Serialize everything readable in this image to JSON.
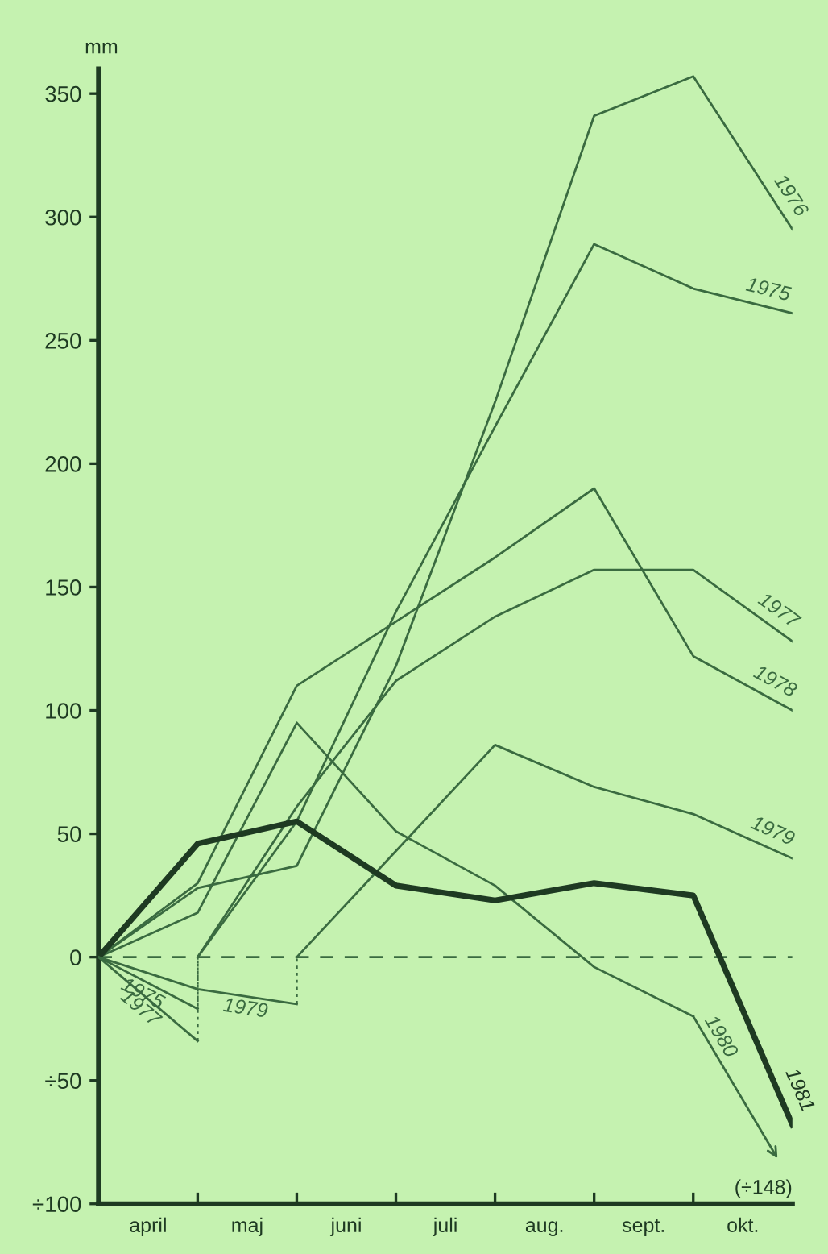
{
  "chart_data": {
    "type": "line",
    "ylabel": "mm",
    "categories": [
      null,
      null,
      null,
      null,
      null,
      null,
      null,
      null
    ],
    "ylim": [
      -100,
      360
    ],
    "yticks": [
      {
        "value": -100,
        "label": "÷100"
      },
      {
        "value": -50,
        "label": "÷50"
      },
      0,
      50,
      100,
      150,
      200,
      250,
      300,
      350
    ],
    "grid": false,
    "legend": false,
    "marker": "none",
    "ref_lines": [
      {
        "axis": "y",
        "value": 0,
        "label": null,
        "line_style": "dashed",
        "color": "#3a6b40"
      }
    ],
    "series": [
      {
        "name": "1975",
        "color": "#3a6b40",
        "values": [
          null,
          0,
          55,
          140,
          215,
          289,
          271,
          261
        ]
      },
      {
        "name": "1976",
        "color": "#3a6b40",
        "values": [
          0,
          28,
          37,
          118,
          225,
          341,
          357,
          295
        ]
      },
      {
        "name": "1977",
        "color": "#3a6b40",
        "values": [
          null,
          0,
          61,
          112,
          138,
          157,
          157,
          128
        ]
      },
      {
        "name": "1978",
        "color": "#3a6b40",
        "values": [
          0,
          30,
          110,
          136,
          162,
          190,
          122,
          100
        ]
      },
      {
        "name": "1979",
        "color": "#3a6b40",
        "values": [
          null,
          null,
          0,
          43,
          86,
          69,
          58,
          40
        ]
      },
      {
        "name": "1980",
        "color": "#3a6b40",
        "values": [
          0,
          18,
          95,
          51,
          29,
          -4,
          -24,
          null
        ]
      },
      {
        "name": "1981",
        "color": "#1e3a22",
        "values": [
          0,
          46,
          55,
          29,
          23,
          30,
          25,
          -68
        ]
      },
      {
        "name": "1975",
        "color": "#3a6b40",
        "values": [
          0,
          -21,
          null,
          null,
          null,
          null,
          null,
          null
        ]
      },
      {
        "name": "1977",
        "color": "#3a6b40",
        "values": [
          0,
          -34,
          null,
          null,
          null,
          null,
          null,
          null
        ]
      },
      {
        "name": "1979",
        "color": "#3a6b40",
        "values": [
          0,
          -13,
          -19,
          null,
          null,
          null,
          null,
          null
        ]
      }
    ],
    "annotations": [
      "april",
      "maj",
      "juni",
      "juli",
      "aug.",
      "sept.",
      "okt.",
      "(÷148)"
    ]
  }
}
